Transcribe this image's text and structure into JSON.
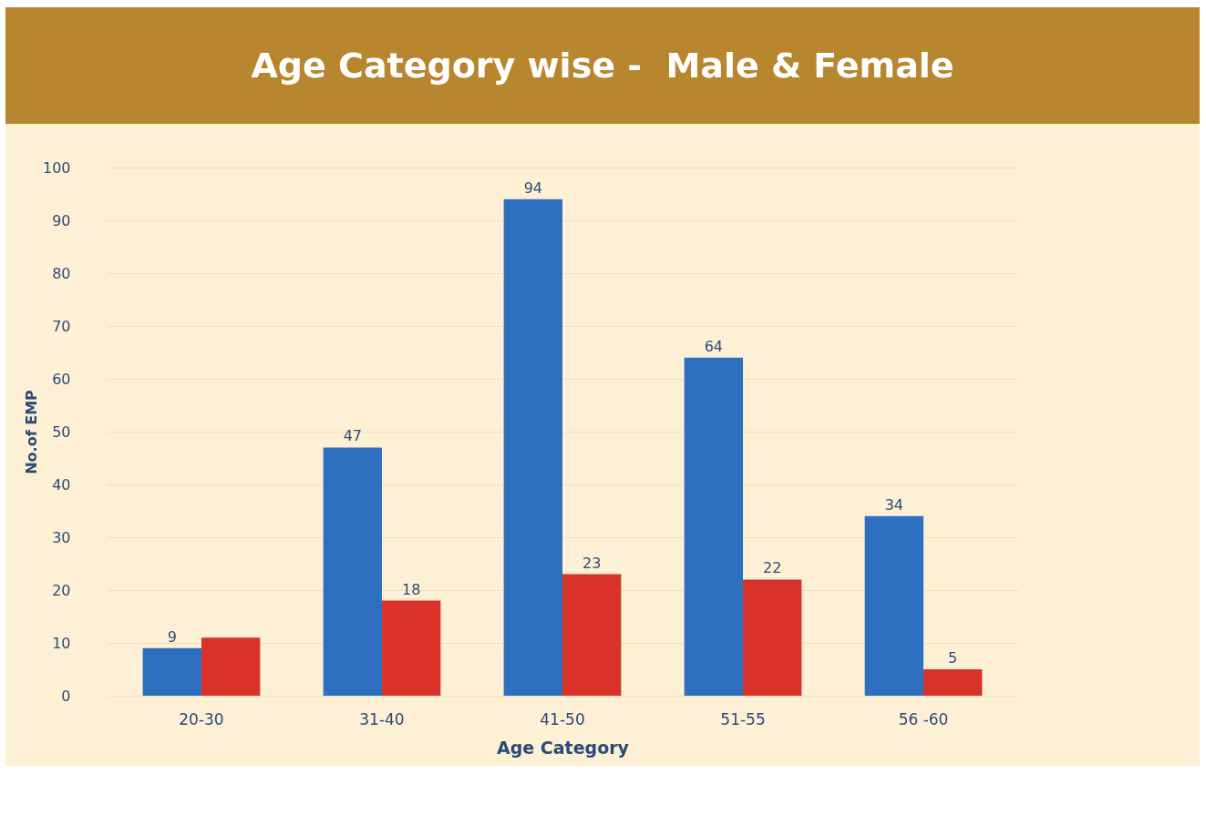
{
  "chart_data": {
    "type": "bar",
    "title": "Age Category wise -  Male & Female",
    "xlabel": "Age Category",
    "ylabel": "No.of EMP",
    "categories": [
      "20-30",
      "31-40",
      "41-50",
      "51-55",
      "56 -60"
    ],
    "series": [
      {
        "color": "#2e6fc0",
        "values": [
          9,
          47,
          94,
          64,
          34
        ],
        "value_labels": [
          "9",
          "47",
          "94",
          "64",
          "34"
        ]
      },
      {
        "color": "#d9322a",
        "values": [
          11,
          18,
          23,
          22,
          5
        ],
        "value_labels": [
          null,
          "18",
          "23",
          "22",
          "5"
        ]
      }
    ],
    "ylim": [
      0,
      100
    ],
    "yticks": [
      0,
      10,
      20,
      30,
      40,
      50,
      60,
      70,
      80,
      90,
      100
    ],
    "grid": "y",
    "legend": false
  }
}
